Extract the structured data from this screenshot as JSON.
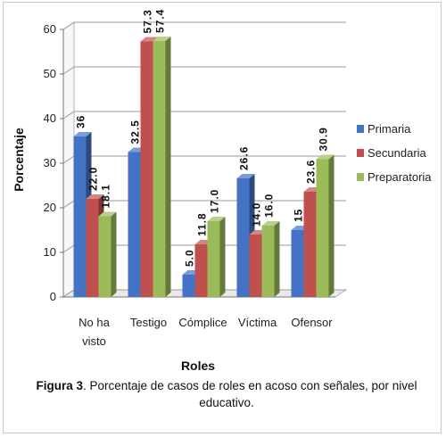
{
  "chart_data": {
    "type": "bar",
    "xlabel": "Roles",
    "ylabel": "Porcentaje",
    "ylim": [
      0,
      60
    ],
    "yticks": [
      "0",
      "10",
      "20",
      "30",
      "40",
      "50",
      "60"
    ],
    "grid": true,
    "legend_position": "right",
    "categories": [
      "No ha visto",
      "Testigo",
      "Cómplice",
      "Víctima",
      "Ofensor"
    ],
    "series": [
      {
        "name": "Primaria",
        "color": "#4472C4",
        "values": [
          36,
          32.5,
          5.0,
          26.6,
          15
        ],
        "labels": [
          "36",
          "32.5",
          "5.0",
          "26.6",
          "15"
        ]
      },
      {
        "name": "Secundaria",
        "color": "#C0504D",
        "values": [
          22.0,
          57.3,
          11.8,
          14.0,
          23.6
        ],
        "labels": [
          "22.0",
          "57.3",
          "11.8",
          "14.0",
          "23.6"
        ]
      },
      {
        "name": "Preparatoria",
        "color": "#9BBB59",
        "values": [
          18.1,
          57.4,
          17.0,
          16.0,
          30.9
        ],
        "labels": [
          "18.1",
          "57.4",
          "17.0",
          "16.0",
          "30.9"
        ]
      }
    ]
  },
  "category_lines": [
    [
      "No ha",
      "visto"
    ],
    [
      "Testigo"
    ],
    [
      "Cómplice"
    ],
    [
      "Víctima"
    ],
    [
      "Ofensor"
    ]
  ],
  "caption": {
    "label": "Figura 3",
    "text": ". Porcentaje de casos de roles en acoso con señales, por nivel educativo."
  }
}
